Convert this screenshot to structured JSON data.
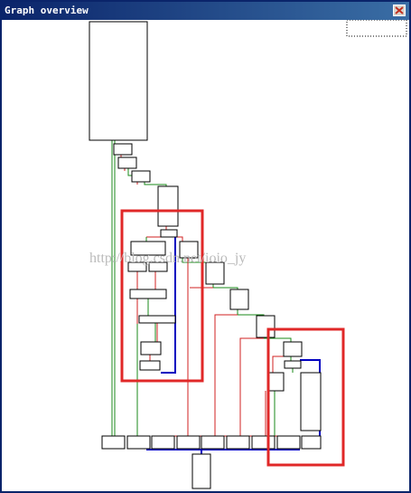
{
  "window": {
    "title": "Graph overview",
    "watermark": "http://blog.csdn.net/ioio_jy"
  }
}
